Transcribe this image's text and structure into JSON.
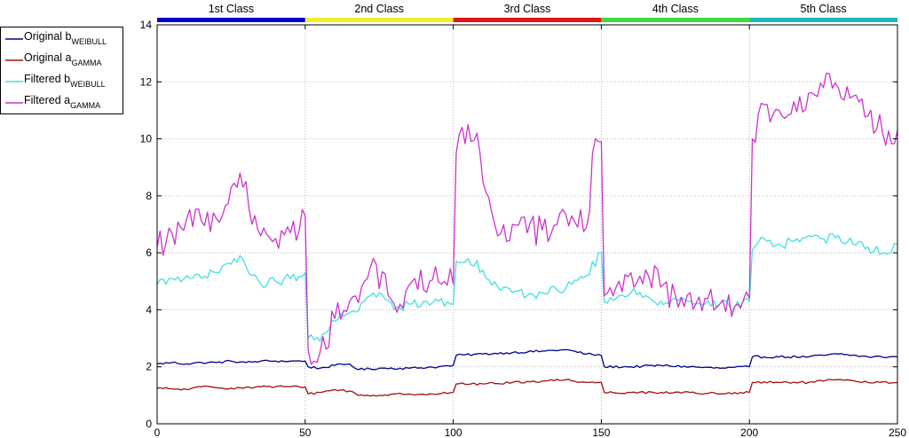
{
  "chart_data": {
    "type": "line",
    "xlim": [
      0,
      250
    ],
    "ylim": [
      0,
      14
    ],
    "x_ticks": [
      0,
      50,
      100,
      150,
      200,
      250
    ],
    "y_ticks": [
      0,
      2,
      4,
      6,
      8,
      10,
      12,
      14
    ],
    "grid": true,
    "legend_position": "outside-left-top",
    "class_bands": [
      {
        "label": "1st Class",
        "start": 0,
        "end": 50,
        "color": "#0000cc"
      },
      {
        "label": "2nd Class",
        "start": 50,
        "end": 100,
        "color": "#f2ef2a"
      },
      {
        "label": "3rd Class",
        "start": 100,
        "end": 150,
        "color": "#e01515"
      },
      {
        "label": "4th Class",
        "start": 150,
        "end": 200,
        "color": "#3cdc3c"
      },
      {
        "label": "5th Class",
        "start": 200,
        "end": 250,
        "color": "#1eb8b8"
      }
    ],
    "series": [
      {
        "name": "Original b",
        "subscript": "WEIBULL",
        "color": "#00008b",
        "anchors": [
          [
            0,
            2.1
          ],
          [
            5,
            2.15
          ],
          [
            10,
            2.1
          ],
          [
            15,
            2.15
          ],
          [
            20,
            2.15
          ],
          [
            25,
            2.2
          ],
          [
            30,
            2.15
          ],
          [
            35,
            2.2
          ],
          [
            40,
            2.2
          ],
          [
            45,
            2.2
          ],
          [
            50,
            2.2
          ],
          [
            51,
            2.0
          ],
          [
            55,
            1.95
          ],
          [
            60,
            2.05
          ],
          [
            65,
            2.1
          ],
          [
            68,
            1.9
          ],
          [
            75,
            1.95
          ],
          [
            85,
            1.95
          ],
          [
            95,
            2.0
          ],
          [
            100,
            2.05
          ],
          [
            101,
            2.4
          ],
          [
            110,
            2.45
          ],
          [
            120,
            2.5
          ],
          [
            130,
            2.55
          ],
          [
            138,
            2.6
          ],
          [
            145,
            2.45
          ],
          [
            150,
            2.4
          ],
          [
            151,
            2.0
          ],
          [
            160,
            2.0
          ],
          [
            170,
            2.05
          ],
          [
            180,
            2.0
          ],
          [
            190,
            1.95
          ],
          [
            200,
            2.0
          ],
          [
            201,
            2.35
          ],
          [
            210,
            2.35
          ],
          [
            220,
            2.35
          ],
          [
            230,
            2.45
          ],
          [
            240,
            2.35
          ],
          [
            250,
            2.35
          ]
        ],
        "noise": 0.04
      },
      {
        "name": "Original a",
        "subscript": "GAMMA",
        "color": "#a01010",
        "anchors": [
          [
            0,
            1.25
          ],
          [
            10,
            1.2
          ],
          [
            15,
            1.3
          ],
          [
            25,
            1.25
          ],
          [
            35,
            1.3
          ],
          [
            45,
            1.3
          ],
          [
            50,
            1.3
          ],
          [
            51,
            1.05
          ],
          [
            55,
            1.1
          ],
          [
            60,
            1.2
          ],
          [
            65,
            1.15
          ],
          [
            68,
            1.0
          ],
          [
            75,
            1.0
          ],
          [
            85,
            1.05
          ],
          [
            95,
            1.05
          ],
          [
            100,
            1.1
          ],
          [
            101,
            1.4
          ],
          [
            110,
            1.4
          ],
          [
            120,
            1.45
          ],
          [
            130,
            1.5
          ],
          [
            138,
            1.55
          ],
          [
            145,
            1.45
          ],
          [
            150,
            1.45
          ],
          [
            151,
            1.1
          ],
          [
            160,
            1.1
          ],
          [
            170,
            1.1
          ],
          [
            180,
            1.1
          ],
          [
            190,
            1.05
          ],
          [
            200,
            1.1
          ],
          [
            201,
            1.45
          ],
          [
            210,
            1.45
          ],
          [
            220,
            1.45
          ],
          [
            230,
            1.55
          ],
          [
            240,
            1.45
          ],
          [
            250,
            1.45
          ]
        ],
        "noise": 0.04
      },
      {
        "name": "Filtered b",
        "subscript": "WEIBULL",
        "color": "#3fe0e0",
        "anchors": [
          [
            0,
            4.9
          ],
          [
            5,
            5.1
          ],
          [
            10,
            5.2
          ],
          [
            15,
            5.1
          ],
          [
            20,
            5.3
          ],
          [
            25,
            5.6
          ],
          [
            28,
            5.9
          ],
          [
            32,
            5.2
          ],
          [
            35,
            4.9
          ],
          [
            40,
            5.0
          ],
          [
            45,
            5.1
          ],
          [
            50,
            5.3
          ],
          [
            51,
            3.0
          ],
          [
            55,
            2.9
          ],
          [
            60,
            3.6
          ],
          [
            65,
            3.9
          ],
          [
            70,
            4.3
          ],
          [
            75,
            4.6
          ],
          [
            80,
            4.0
          ],
          [
            85,
            4.2
          ],
          [
            90,
            4.3
          ],
          [
            95,
            4.3
          ],
          [
            100,
            4.2
          ],
          [
            101,
            5.7
          ],
          [
            105,
            5.8
          ],
          [
            110,
            5.4
          ],
          [
            115,
            4.8
          ],
          [
            120,
            4.6
          ],
          [
            125,
            4.5
          ],
          [
            130,
            4.6
          ],
          [
            135,
            4.7
          ],
          [
            140,
            4.9
          ],
          [
            145,
            5.2
          ],
          [
            150,
            6.0
          ],
          [
            151,
            4.3
          ],
          [
            155,
            4.4
          ],
          [
            160,
            4.6
          ],
          [
            165,
            4.5
          ],
          [
            170,
            4.3
          ],
          [
            175,
            4.4
          ],
          [
            180,
            4.3
          ],
          [
            185,
            4.2
          ],
          [
            190,
            4.2
          ],
          [
            195,
            4.1
          ],
          [
            200,
            4.3
          ],
          [
            201,
            6.1
          ],
          [
            205,
            6.5
          ],
          [
            210,
            6.3
          ],
          [
            215,
            6.4
          ],
          [
            220,
            6.6
          ],
          [
            225,
            6.5
          ],
          [
            230,
            6.6
          ],
          [
            235,
            6.3
          ],
          [
            240,
            6.2
          ],
          [
            245,
            6.0
          ],
          [
            250,
            6.3
          ]
        ],
        "noise": 0.18
      },
      {
        "name": "Filtered a",
        "subscript": "GAMMA",
        "color": "#cc33cc",
        "anchors": [
          [
            0,
            6.2
          ],
          [
            5,
            6.7
          ],
          [
            10,
            7.2
          ],
          [
            15,
            7.1
          ],
          [
            20,
            7.2
          ],
          [
            25,
            8.3
          ],
          [
            28,
            8.8
          ],
          [
            30,
            8.5
          ],
          [
            32,
            7.0
          ],
          [
            35,
            6.6
          ],
          [
            40,
            6.5
          ],
          [
            45,
            6.7
          ],
          [
            50,
            7.3
          ],
          [
            51,
            2.6
          ],
          [
            55,
            2.5
          ],
          [
            60,
            3.7
          ],
          [
            65,
            4.3
          ],
          [
            70,
            5.0
          ],
          [
            73,
            5.8
          ],
          [
            78,
            4.5
          ],
          [
            82,
            4.2
          ],
          [
            87,
            5.1
          ],
          [
            92,
            5.0
          ],
          [
            97,
            5.0
          ],
          [
            100,
            4.9
          ],
          [
            101,
            9.5
          ],
          [
            105,
            10.5
          ],
          [
            108,
            10.2
          ],
          [
            110,
            8.5
          ],
          [
            115,
            6.6
          ],
          [
            120,
            7.0
          ],
          [
            125,
            6.7
          ],
          [
            130,
            6.8
          ],
          [
            135,
            7.0
          ],
          [
            140,
            7.3
          ],
          [
            145,
            6.9
          ],
          [
            148,
            10.0
          ],
          [
            150,
            9.9
          ],
          [
            151,
            4.5
          ],
          [
            155,
            4.8
          ],
          [
            160,
            5.3
          ],
          [
            165,
            5.4
          ],
          [
            170,
            4.8
          ],
          [
            175,
            4.5
          ],
          [
            180,
            4.6
          ],
          [
            185,
            4.4
          ],
          [
            190,
            4.2
          ],
          [
            195,
            4.1
          ],
          [
            200,
            4.4
          ],
          [
            201,
            10.0
          ],
          [
            205,
            11.2
          ],
          [
            210,
            11.0
          ],
          [
            215,
            11.3
          ],
          [
            220,
            11.6
          ],
          [
            225,
            11.8
          ],
          [
            230,
            11.8
          ],
          [
            235,
            11.5
          ],
          [
            240,
            10.8
          ],
          [
            245,
            10.2
          ],
          [
            250,
            10.3
          ]
        ],
        "noise": 0.55
      }
    ]
  }
}
